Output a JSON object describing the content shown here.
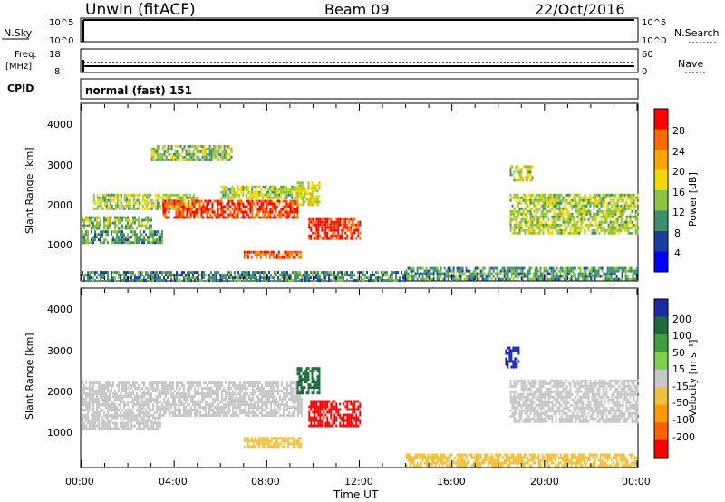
{
  "header": {
    "station": "Unwin (fitACF)",
    "beam": "Beam 09",
    "date": "22/Oct/2016"
  },
  "nsky_panel": {
    "label": "N.Sky",
    "left_ticks": [
      "10^5",
      "10^0"
    ],
    "right_ticks": [
      "10^5",
      "10^0"
    ],
    "right_label": "N.Search"
  },
  "freq_panel": {
    "label_line1": "Freq.",
    "label_line2": "[MHz]",
    "left_ticks": [
      "18",
      "8"
    ],
    "right_ticks": [
      "60",
      "0"
    ],
    "right_label": "Nave"
  },
  "cpid_panel": {
    "label": "CPID",
    "mode_text": "normal (fast)  151"
  },
  "power_panel": {
    "ylabel": "Slant Range [km]",
    "y_ticks": [
      "4000",
      "3000",
      "2000",
      "1000"
    ],
    "colorbar_label": "Power [dB]",
    "colorbar_ticks": [
      "28",
      "24",
      "20",
      "16",
      "12",
      "8",
      "4"
    ],
    "colorbar_colors": [
      "#ff0000",
      "#ff6a00",
      "#ffa500",
      "#f0d800",
      "#8fc23f",
      "#3f8f6f",
      "#1a3fa0",
      "#0000ff"
    ]
  },
  "velocity_panel": {
    "ylabel": "Slant Range [km]",
    "y_ticks": [
      "4000",
      "3000",
      "2000",
      "1000"
    ],
    "colorbar_label": "Velocity [m s⁻¹]",
    "colorbar_ticks": [
      "200",
      "100",
      "50",
      "15",
      "-15",
      "-50",
      "-100",
      "-200"
    ],
    "colorbar_colors": [
      "#1a2aa8",
      "#1f6a3a",
      "#3f9f3f",
      "#7fd04f",
      "#c8c8c8",
      "#f0c040",
      "#ff9a00",
      "#ff6000",
      "#ff0000"
    ]
  },
  "x_axis": {
    "label": "Time UT",
    "ticks": [
      "00:00",
      "04:00",
      "08:00",
      "12:00",
      "16:00",
      "20:00",
      "00:00"
    ]
  },
  "chart_data": {
    "type": "heatmap",
    "x_range_hours": [
      0,
      24
    ],
    "y_range_km": [
      180,
      4500
    ],
    "power_scale_db": [
      0,
      30
    ],
    "velocity_scale_ms": [
      -250,
      250
    ],
    "power_regions": [
      {
        "t0": 0.0,
        "t1": 3.0,
        "r0": 1450,
        "r1": 1750,
        "value": 12
      },
      {
        "t0": 0.0,
        "t1": 3.5,
        "r0": 1100,
        "r1": 1400,
        "value": 10
      },
      {
        "t0": 0.5,
        "t1": 5.0,
        "r0": 1900,
        "r1": 2300,
        "value": 14
      },
      {
        "t0": 3.5,
        "t1": 9.3,
        "r0": 1700,
        "r1": 2150,
        "value": 26
      },
      {
        "t0": 6.0,
        "t1": 9.5,
        "r0": 2200,
        "r1": 2500,
        "value": 14
      },
      {
        "t0": 9.8,
        "t1": 12.0,
        "r0": 1200,
        "r1": 1700,
        "value": 27
      },
      {
        "t0": 7.0,
        "t1": 9.5,
        "r0": 700,
        "r1": 900,
        "value": 25
      },
      {
        "t0": 9.3,
        "t1": 10.3,
        "r0": 2000,
        "r1": 2600,
        "value": 16
      },
      {
        "t0": 18.5,
        "t1": 24.0,
        "r0": 1300,
        "r1": 2300,
        "value": 14
      },
      {
        "t0": 18.5,
        "t1": 19.5,
        "r0": 2600,
        "r1": 3000,
        "value": 14
      },
      {
        "t0": 14.0,
        "t1": 24.0,
        "r0": 180,
        "r1": 500,
        "value": 10
      },
      {
        "t0": 0.0,
        "t1": 14.0,
        "r0": 180,
        "r1": 400,
        "value": 9
      },
      {
        "t0": 3.0,
        "t1": 6.5,
        "r0": 3100,
        "r1": 3500,
        "value": 13
      }
    ],
    "velocity_regions": [
      {
        "t0": 0.0,
        "t1": 9.5,
        "r0": 1450,
        "r1": 2250,
        "value": 0
      },
      {
        "t0": 0.0,
        "t1": 3.5,
        "r0": 1100,
        "r1": 1400,
        "value": 0
      },
      {
        "t0": 9.8,
        "t1": 12.0,
        "r0": 1200,
        "r1": 1800,
        "value": -220
      },
      {
        "t0": 7.0,
        "t1": 9.5,
        "r0": 700,
        "r1": 900,
        "value": -50
      },
      {
        "t0": 18.5,
        "t1": 24.0,
        "r0": 1300,
        "r1": 2300,
        "value": 0
      },
      {
        "t0": 18.3,
        "t1": 18.9,
        "r0": 2600,
        "r1": 3100,
        "value": 220
      },
      {
        "t0": 14.0,
        "t1": 24.0,
        "r0": 180,
        "r1": 500,
        "value": -40
      },
      {
        "t0": 9.3,
        "t1": 10.3,
        "r0": 2000,
        "r1": 2600,
        "value": 150
      }
    ],
    "freq_mhz": 11,
    "nave": 24,
    "cpid": 151
  }
}
